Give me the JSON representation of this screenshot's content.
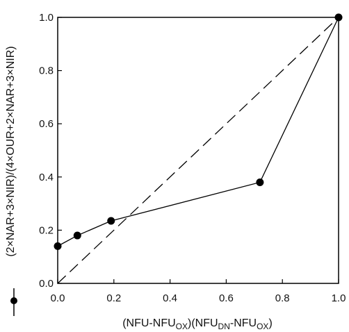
{
  "chart_data": {
    "type": "line",
    "title": "",
    "xlabel": {
      "parts": [
        "(NFU-NFU",
        "OX",
        ")(NFU",
        "DN",
        "-NFU",
        "OX",
        ")"
      ]
    },
    "ylabel": "(2×NAR+3×NIR)/(4×OUR+2×NAR+3×NIR)",
    "xlim": [
      0.0,
      1.0
    ],
    "ylim": [
      0.0,
      1.0
    ],
    "x_ticks": [
      "0.0",
      "0.2",
      "0.4",
      "0.6",
      "0.8",
      "1.0"
    ],
    "y_ticks": [
      "0.0",
      "0.2",
      "0.4",
      "0.6",
      "0.8",
      "1.0"
    ],
    "grid": false,
    "series": [
      {
        "style": "solid line with filled circle markers",
        "color": "#000000",
        "x": [
          0.0,
          0.07,
          0.19,
          0.72,
          1.0
        ],
        "y": [
          0.14,
          0.18,
          0.235,
          0.38,
          1.0
        ]
      },
      {
        "style": "dashed line",
        "color": "#000000",
        "x": [
          0.0,
          1.0
        ],
        "y": [
          0.0,
          1.0
        ]
      }
    ]
  }
}
